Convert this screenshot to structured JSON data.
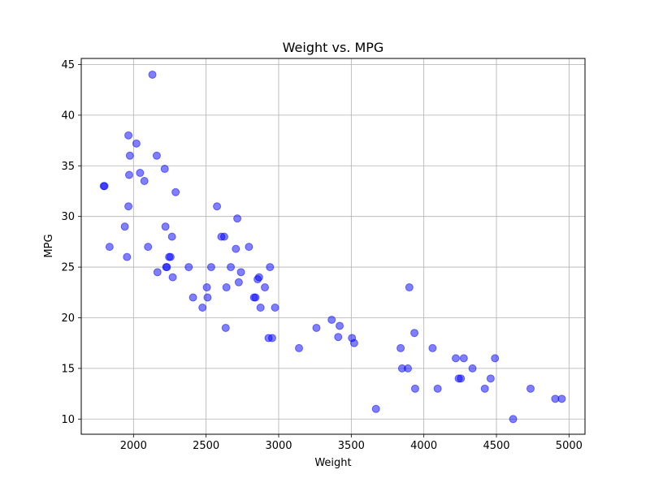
{
  "chart_data": {
    "type": "scatter",
    "title": "Weight vs. MPG",
    "xlabel": "Weight",
    "ylabel": "MPG",
    "xlim": [
      1640,
      5110
    ],
    "ylim": [
      8.5,
      45.6
    ],
    "xticks": [
      2000,
      2500,
      3000,
      3500,
      4000,
      4500,
      5000
    ],
    "yticks": [
      10,
      15,
      20,
      25,
      30,
      35,
      40,
      45
    ],
    "grid": true,
    "marker_color": "#0000ff",
    "marker_alpha": 0.5,
    "points": [
      {
        "x": 1795,
        "y": 33
      },
      {
        "x": 1800,
        "y": 33
      },
      {
        "x": 1835,
        "y": 27
      },
      {
        "x": 1940,
        "y": 29
      },
      {
        "x": 1955,
        "y": 26
      },
      {
        "x": 1965,
        "y": 38
      },
      {
        "x": 1965,
        "y": 31
      },
      {
        "x": 1970,
        "y": 34.1
      },
      {
        "x": 1975,
        "y": 36
      },
      {
        "x": 2020,
        "y": 37.2
      },
      {
        "x": 2045,
        "y": 34.3
      },
      {
        "x": 2075,
        "y": 33.5
      },
      {
        "x": 2100,
        "y": 27
      },
      {
        "x": 2130,
        "y": 44
      },
      {
        "x": 2160,
        "y": 36
      },
      {
        "x": 2165,
        "y": 24.5
      },
      {
        "x": 2215,
        "y": 34.7
      },
      {
        "x": 2220,
        "y": 29
      },
      {
        "x": 2225,
        "y": 25
      },
      {
        "x": 2230,
        "y": 25
      },
      {
        "x": 2245,
        "y": 26
      },
      {
        "x": 2255,
        "y": 26
      },
      {
        "x": 2265,
        "y": 28
      },
      {
        "x": 2270,
        "y": 24
      },
      {
        "x": 2290,
        "y": 32.4
      },
      {
        "x": 2380,
        "y": 25
      },
      {
        "x": 2410,
        "y": 22
      },
      {
        "x": 2475,
        "y": 21
      },
      {
        "x": 2505,
        "y": 23
      },
      {
        "x": 2510,
        "y": 22
      },
      {
        "x": 2535,
        "y": 25
      },
      {
        "x": 2575,
        "y": 31
      },
      {
        "x": 2605,
        "y": 28
      },
      {
        "x": 2625,
        "y": 28
      },
      {
        "x": 2635,
        "y": 19
      },
      {
        "x": 2640,
        "y": 23
      },
      {
        "x": 2670,
        "y": 25
      },
      {
        "x": 2705,
        "y": 26.8
      },
      {
        "x": 2715,
        "y": 29.8
      },
      {
        "x": 2725,
        "y": 23.5
      },
      {
        "x": 2740,
        "y": 24.5
      },
      {
        "x": 2795,
        "y": 27
      },
      {
        "x": 2830,
        "y": 22
      },
      {
        "x": 2840,
        "y": 22
      },
      {
        "x": 2855,
        "y": 23.8
      },
      {
        "x": 2865,
        "y": 24
      },
      {
        "x": 2875,
        "y": 21
      },
      {
        "x": 2905,
        "y": 23
      },
      {
        "x": 2930,
        "y": 18
      },
      {
        "x": 2940,
        "y": 25
      },
      {
        "x": 2955,
        "y": 18
      },
      {
        "x": 2975,
        "y": 21
      },
      {
        "x": 3140,
        "y": 17
      },
      {
        "x": 3260,
        "y": 19
      },
      {
        "x": 3365,
        "y": 19.8
      },
      {
        "x": 3410,
        "y": 18.1
      },
      {
        "x": 3420,
        "y": 19.2
      },
      {
        "x": 3505,
        "y": 18
      },
      {
        "x": 3520,
        "y": 17.5
      },
      {
        "x": 3670,
        "y": 11
      },
      {
        "x": 3840,
        "y": 17
      },
      {
        "x": 3850,
        "y": 15
      },
      {
        "x": 3890,
        "y": 15
      },
      {
        "x": 3900,
        "y": 23
      },
      {
        "x": 3935,
        "y": 18.5
      },
      {
        "x": 3940,
        "y": 13
      },
      {
        "x": 4060,
        "y": 17
      },
      {
        "x": 4095,
        "y": 13
      },
      {
        "x": 4220,
        "y": 16
      },
      {
        "x": 4240,
        "y": 14
      },
      {
        "x": 4255,
        "y": 14
      },
      {
        "x": 4275,
        "y": 16
      },
      {
        "x": 4335,
        "y": 15
      },
      {
        "x": 4420,
        "y": 13
      },
      {
        "x": 4460,
        "y": 14
      },
      {
        "x": 4490,
        "y": 16
      },
      {
        "x": 4615,
        "y": 10
      },
      {
        "x": 4735,
        "y": 13
      },
      {
        "x": 4905,
        "y": 12
      },
      {
        "x": 4950,
        "y": 12
      }
    ]
  }
}
